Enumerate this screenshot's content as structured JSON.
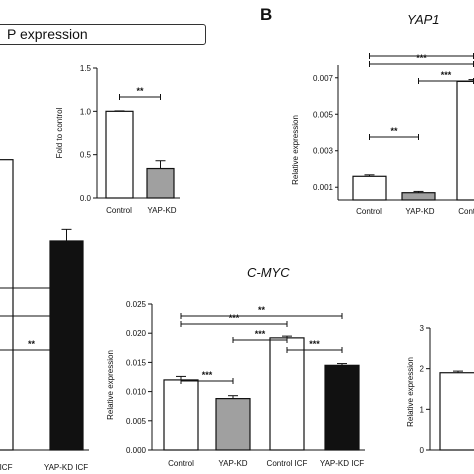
{
  "header": {
    "box_text": "P expression",
    "panel_b_letter": "B",
    "yap1_title": "YAP1",
    "cmyc_title": "C-MYC"
  },
  "chart_data": [
    {
      "id": "fold",
      "type": "bar",
      "categories": [
        "Control",
        "YAP-KD"
      ],
      "values": [
        1.0,
        0.34
      ],
      "errors": [
        0.005,
        0.09
      ],
      "fills": [
        "#ffffff",
        "#a0a0a0"
      ],
      "ylabel": "Fold to control",
      "ylim": [
        0,
        1.5
      ],
      "yticks": [
        0.0,
        0.5,
        1.0,
        1.5
      ],
      "tick_labels": [
        "0.0",
        "0.5",
        "1.0",
        "1.5"
      ],
      "significance": [
        {
          "from": 0,
          "to": 1,
          "label": "**"
        }
      ]
    },
    {
      "id": "yap1",
      "type": "bar",
      "categories": [
        "Control",
        "YAP-KD",
        "Contr"
      ],
      "values": [
        0.0016,
        0.0007,
        0.0068
      ],
      "errors": [
        8e-05,
        7e-05,
        0.0001
      ],
      "fills": [
        "#ffffff",
        "#a0a0a0",
        "#ffffff"
      ],
      "ylabel": "Relative expression",
      "yticks": [
        0.001,
        0.003,
        0.005,
        0.007
      ],
      "tick_labels": [
        "0.001",
        "0.003",
        "0.005",
        "0.007"
      ],
      "significance": [
        {
          "from": 0,
          "to": 1,
          "label": "**"
        },
        {
          "from": 1,
          "to": 2,
          "label": "***"
        },
        {
          "from": 0,
          "to": 2,
          "label": "***"
        },
        {
          "from": 0,
          "to": 2,
          "label": ""
        }
      ]
    },
    {
      "id": "left",
      "type": "bar",
      "categories": [
        "ICF",
        "YAP-KD ICF"
      ],
      "values": [
        1.0,
        0.72
      ],
      "errors": [
        0.0,
        0.04
      ],
      "fills": [
        "#ffffff",
        "#111111"
      ],
      "significance": [
        {
          "from": 0,
          "to": 1,
          "label": "**"
        },
        {
          "from": 0,
          "to": 1,
          "label": ""
        },
        {
          "from": 0,
          "to": 1,
          "label": ""
        }
      ]
    },
    {
      "id": "cmyc",
      "type": "bar",
      "categories": [
        "Control",
        "YAP-KD",
        "Control ICF",
        "YAP-KD ICF"
      ],
      "values": [
        0.012,
        0.0088,
        0.0192,
        0.0145
      ],
      "errors": [
        0.0006,
        0.0005,
        0.0003,
        0.0003
      ],
      "fills": [
        "#ffffff",
        "#a0a0a0",
        "#ffffff",
        "#111111"
      ],
      "ylabel": "Relative expression",
      "ylim": [
        0,
        0.025
      ],
      "yticks": [
        0,
        0.005,
        0.01,
        0.015,
        0.02,
        0.025
      ],
      "tick_labels": [
        "0.000",
        "0.005",
        "0.010",
        "0.015",
        "0.020",
        "0.025"
      ],
      "significance": [
        {
          "from": 0,
          "to": 1,
          "label": "***"
        },
        {
          "from": 2,
          "to": 3,
          "label": "***"
        },
        {
          "from": 1,
          "to": 2,
          "label": "***"
        },
        {
          "from": 0,
          "to": 2,
          "label": "***"
        },
        {
          "from": 0,
          "to": 3,
          "label": "**"
        }
      ]
    },
    {
      "id": "right",
      "type": "bar",
      "categories": [
        ""
      ],
      "values": [
        1.9
      ],
      "errors": [
        0.04
      ],
      "fills": [
        "#ffffff"
      ],
      "ylabel": "Relative expression",
      "ylim": [
        0,
        3
      ],
      "yticks": [
        0,
        1,
        2,
        3
      ],
      "tick_labels": [
        "0",
        "1",
        "2",
        "3"
      ],
      "significance": []
    }
  ]
}
